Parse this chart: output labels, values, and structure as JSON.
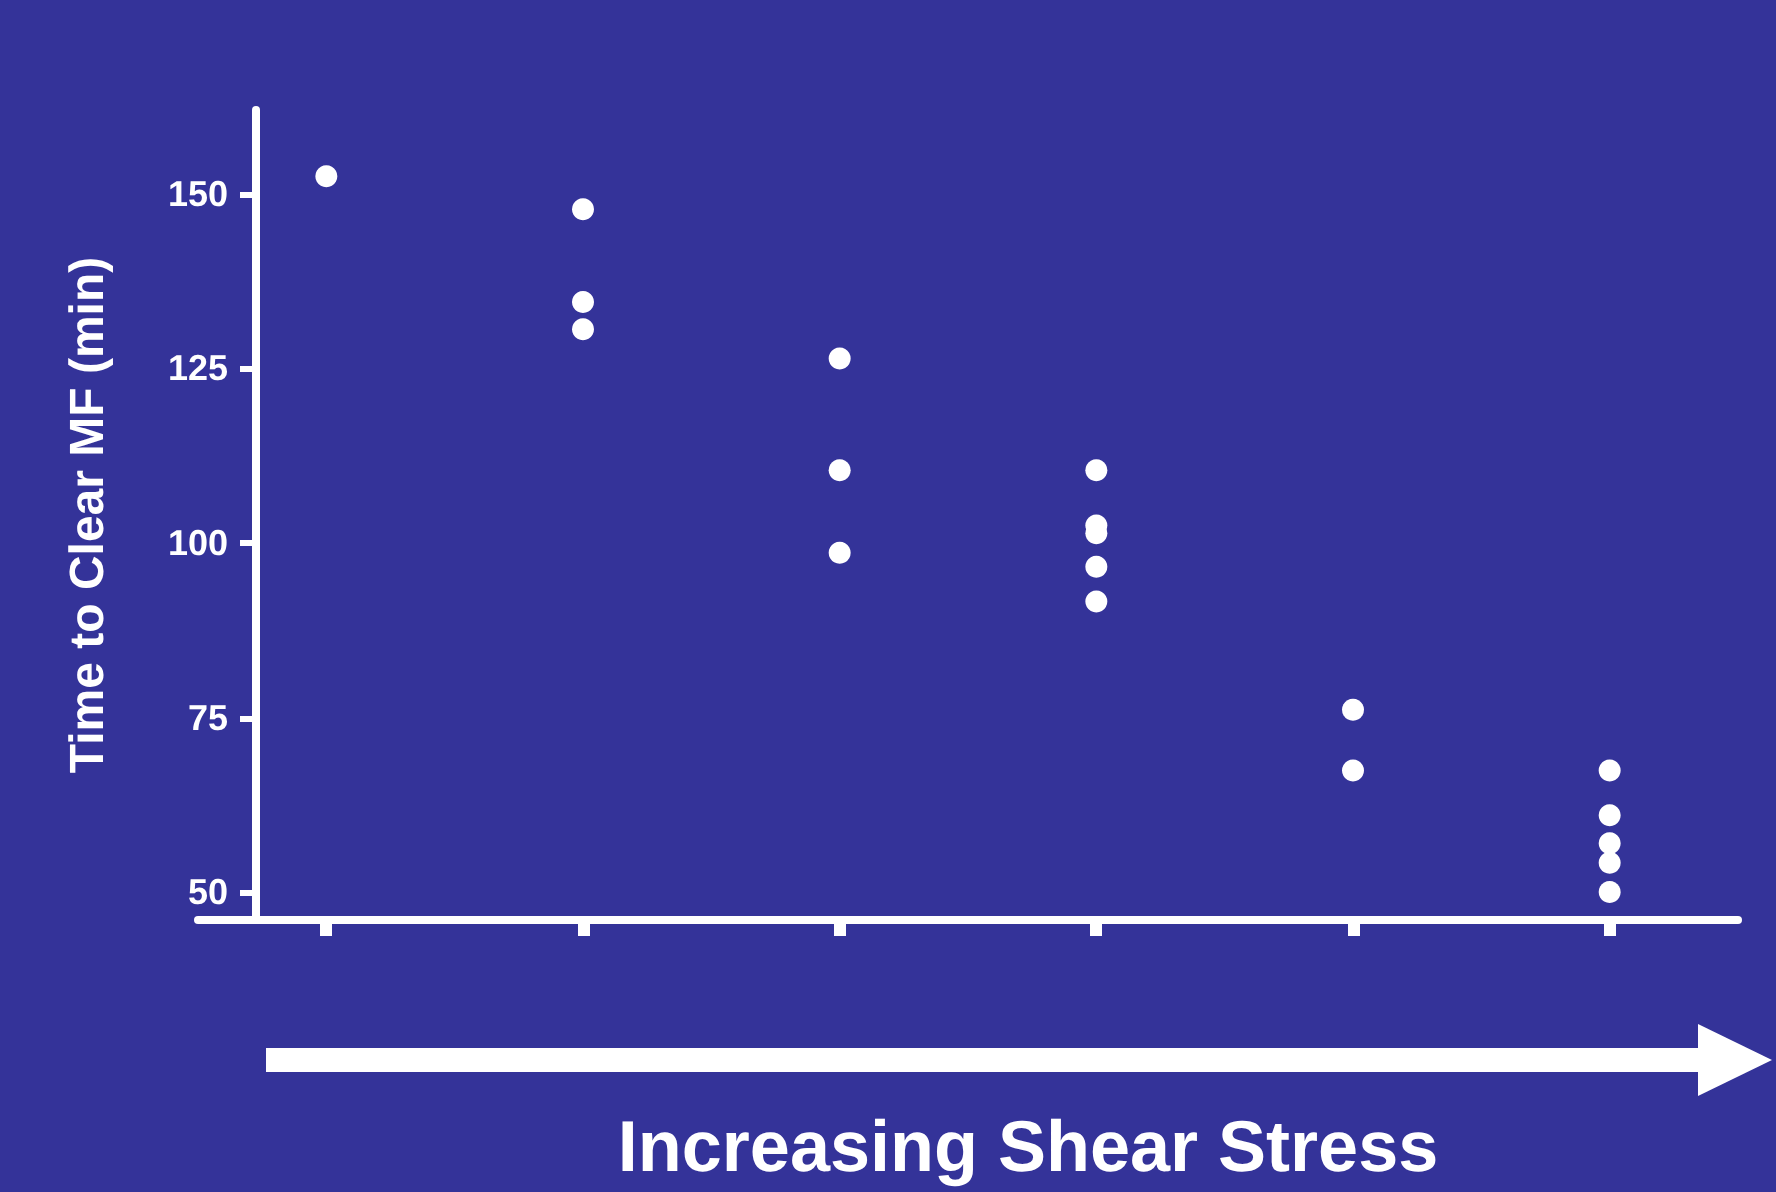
{
  "chart_data": {
    "type": "scatter",
    "xlabel": "Increasing Shear Stress",
    "ylabel": "Time to Clear MF (min)",
    "categories": [
      null,
      null,
      null,
      null,
      null,
      null
    ],
    "series": [
      {
        "color": "#ffffff",
        "values": [
          152.5,
          147.8,
          126.4,
          110.4,
          76.1,
          67.4
        ]
      },
      {
        "color": "#ffffff",
        "values": [
          null,
          134.5,
          110.4,
          102.5,
          67.4,
          61
        ]
      },
      {
        "color": "#ffffff",
        "values": [
          null,
          130.6,
          98.6,
          101.4,
          null,
          57
        ]
      },
      {
        "color": "#ffffff",
        "values": [
          null,
          null,
          null,
          96.6,
          null,
          54.2
        ]
      },
      {
        "color": "#ffffff",
        "values": [
          null,
          null,
          null,
          91.6,
          null,
          50
        ]
      }
    ],
    "ylim": [
      46,
      162
    ],
    "yticks": [
      50,
      75,
      100,
      125,
      150
    ],
    "grid": false,
    "marker": "circle"
  }
}
